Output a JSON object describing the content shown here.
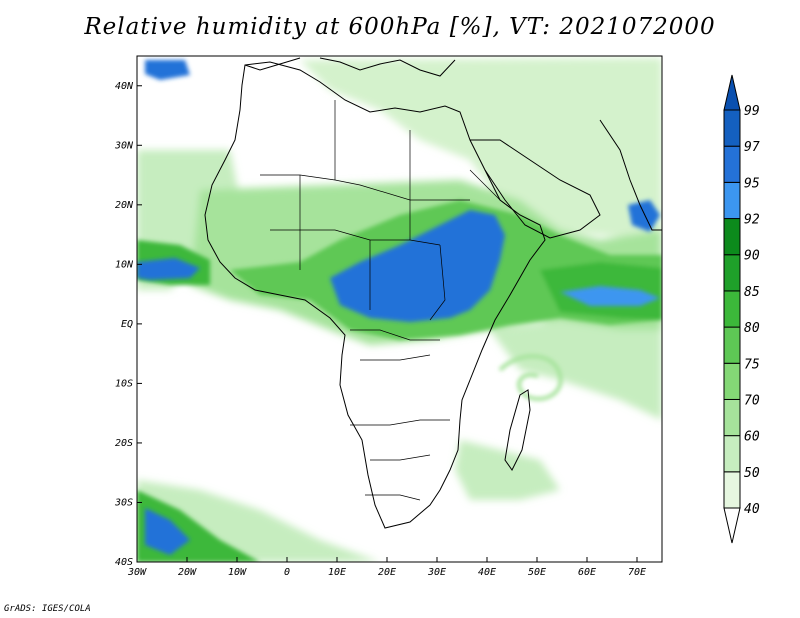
{
  "title": "Relative humidity at 600hPa [%], VT: 2021072000",
  "credit": "GrADS: IGES/COLA",
  "map": {
    "lon_range": [
      -30,
      75
    ],
    "lat_range": [
      -40,
      45
    ],
    "lon_ticks": [
      {
        "value": -30,
        "label": "30W"
      },
      {
        "value": -20,
        "label": "20W"
      },
      {
        "value": -10,
        "label": "10W"
      },
      {
        "value": 0,
        "label": "0"
      },
      {
        "value": 10,
        "label": "10E"
      },
      {
        "value": 20,
        "label": "20E"
      },
      {
        "value": 30,
        "label": "30E"
      },
      {
        "value": 40,
        "label": "40E"
      },
      {
        "value": 50,
        "label": "50E"
      },
      {
        "value": 60,
        "label": "60E"
      },
      {
        "value": 70,
        "label": "70E"
      }
    ],
    "lat_ticks": [
      {
        "value": 40,
        "label": "40N"
      },
      {
        "value": 30,
        "label": "30N"
      },
      {
        "value": 20,
        "label": "20N"
      },
      {
        "value": 10,
        "label": "10N"
      },
      {
        "value": 0,
        "label": "EQ"
      },
      {
        "value": -10,
        "label": "10S"
      },
      {
        "value": -20,
        "label": "20S"
      },
      {
        "value": -30,
        "label": "30S"
      },
      {
        "value": -40,
        "label": "40S"
      }
    ]
  },
  "colorbar": {
    "levels": [
      "40",
      "50",
      "60",
      "70",
      "75",
      "80",
      "85",
      "90",
      "92",
      "95",
      "97",
      "99"
    ],
    "colors": [
      "#ffffff",
      "#e6f7e0",
      "#c6edbf",
      "#a6e39b",
      "#84d876",
      "#5ec855",
      "#3cb83a",
      "#1fa02a",
      "#0c8a1c",
      "#3c96f0",
      "#2472d8",
      "#1460c0",
      "#0a50b0"
    ]
  }
}
